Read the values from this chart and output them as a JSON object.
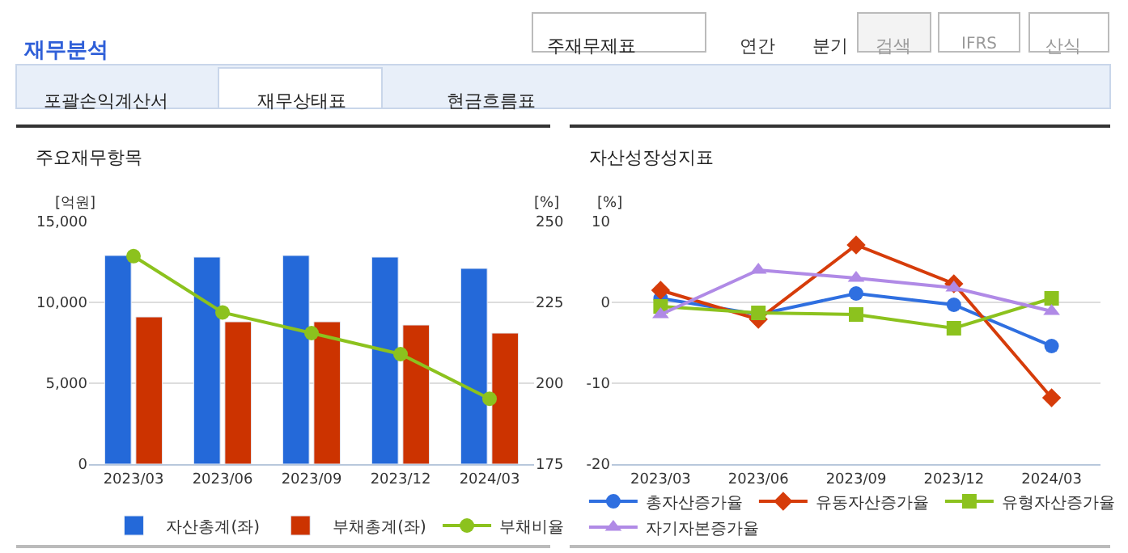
{
  "chart_data": [
    {
      "type": "bar",
      "title": "주요재무항목",
      "ylabel": "[억원]",
      "y2label": "[%]",
      "annotations": [
        "재무분석",
        "주재무제표",
        "연간",
        "분기",
        "검색",
        "IFRS",
        "산식",
        "포괄손익계산서",
        "재무상태표",
        "현금흐름표"
      ],
      "categories": [
        "2023/03",
        "2023/06",
        "2023/09",
        "2023/12",
        "2024/03"
      ],
      "series": [
        {
          "name": "자산총계(좌)",
          "color": "#2469d9",
          "values": [
            12900,
            12800,
            12900,
            12800,
            12100
          ]
        },
        {
          "name": "부채총계(좌)",
          "color": "#cc3300",
          "values": [
            9100,
            8800,
            8800,
            8600,
            8100
          ]
        },
        {
          "name": "부채비율",
          "type": "line",
          "axis": "y2",
          "color": "#8cc21e",
          "marker": "circle",
          "values": [
            239.3,
            221.9,
            215.5,
            209.0,
            195.2
          ]
        }
      ],
      "ylim": [
        0,
        15000
      ],
      "yticks": [
        0,
        {
          "value": 5000,
          "label": "5,000"
        },
        {
          "value": 10000,
          "label": "10,000"
        },
        {
          "value": 15000,
          "label": "15,000"
        }
      ],
      "y2lim": [
        175,
        250
      ],
      "y2ticks": [
        175,
        200,
        225,
        250
      ],
      "grid": "y",
      "legend": "bottom"
    },
    {
      "type": "line",
      "title": "자산성장성지표",
      "ylabel": "[%]",
      "categories": [
        "2023/03",
        "2023/06",
        "2023/09",
        "2023/12",
        "2024/03"
      ],
      "series": [
        {
          "name": "총자산증가율",
          "color": "#2f6fe0",
          "marker": "circle",
          "values": [
            0.5,
            -1.5,
            1.1,
            -0.3,
            -5.4
          ]
        },
        {
          "name": "유동자산증가율",
          "color": "#d63c0a",
          "marker": "diamond",
          "values": [
            1.5,
            -2.1,
            7.1,
            2.3,
            -11.8
          ]
        },
        {
          "name": "유형자산증가율",
          "color": "#8cc21e",
          "marker": "square",
          "values": [
            -0.5,
            -1.3,
            -1.5,
            -3.2,
            0.5
          ]
        },
        {
          "name": "자기자본증가율",
          "color": "#b08ae6",
          "marker": "triangle",
          "values": [
            -1.5,
            4.0,
            3.0,
            1.8,
            -1.1
          ]
        }
      ],
      "ylim": [
        -20,
        10
      ],
      "yticks": [
        -20,
        -10,
        0,
        10
      ],
      "grid": "y",
      "legend": "bottom"
    }
  ]
}
